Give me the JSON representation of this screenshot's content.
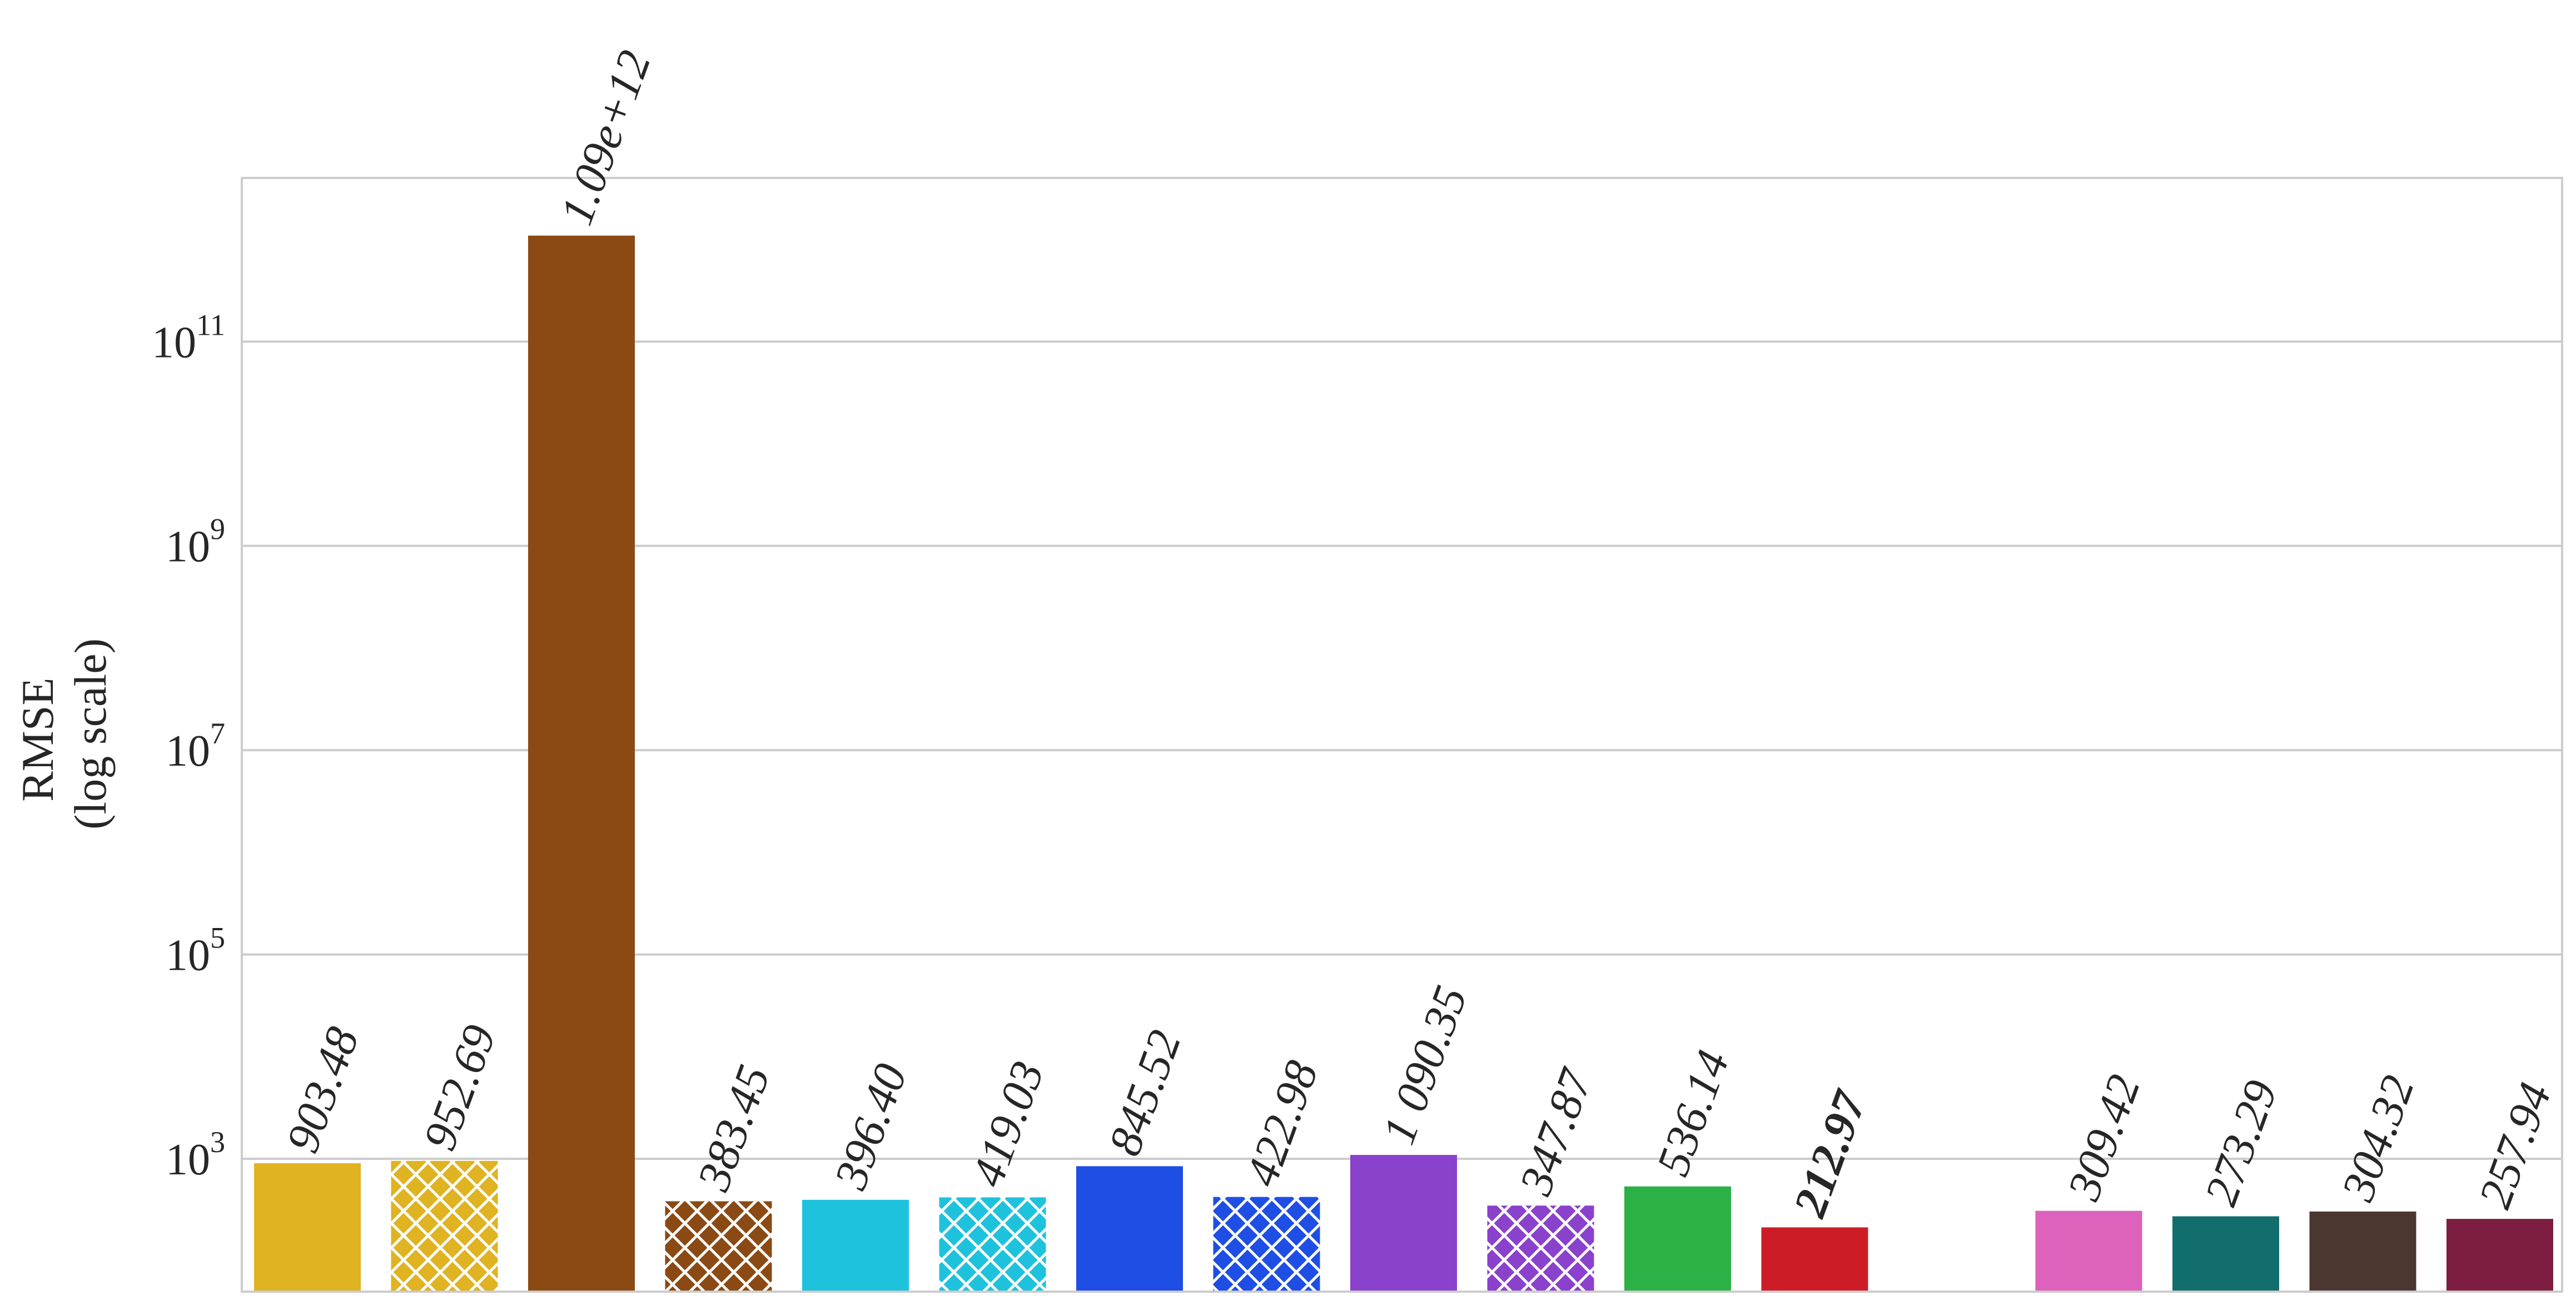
{
  "chart_data": {
    "type": "bar",
    "ylabel_lines": [
      "RMSE",
      "(log scale)"
    ],
    "yscale": "log",
    "ylim": [
      50,
      4000000000000
    ],
    "yticks": [
      {
        "value": 1000,
        "base": "10",
        "exp": "3"
      },
      {
        "value": 100000,
        "base": "10",
        "exp": "5"
      },
      {
        "value": 10000000,
        "base": "10",
        "exp": "7"
      },
      {
        "value": 1000000000,
        "base": "10",
        "exp": "9"
      },
      {
        "value": 100000000000,
        "base": "10",
        "exp": "11"
      }
    ],
    "grid": true,
    "bars": [
      {
        "value": 903.48,
        "label": "903.48",
        "color": "#dfb322",
        "hatch": false,
        "bold": false
      },
      {
        "value": 952.69,
        "label": "952.69",
        "color": "#dfb322",
        "hatch": true,
        "bold": false
      },
      {
        "value": 1090000000000,
        "label": "1.09e+12",
        "color": "#8b4a13",
        "hatch": false,
        "bold": false
      },
      {
        "value": 383.45,
        "label": "383.45",
        "color": "#8b4a13",
        "hatch": true,
        "bold": false
      },
      {
        "value": 396.4,
        "label": "396.40",
        "color": "#1fc2dd",
        "hatch": false,
        "bold": false
      },
      {
        "value": 419.03,
        "label": "419.03",
        "color": "#1fc2dd",
        "hatch": true,
        "bold": false
      },
      {
        "value": 845.52,
        "label": "845.52",
        "color": "#1f4ee4",
        "hatch": false,
        "bold": false
      },
      {
        "value": 422.98,
        "label": "422.98",
        "color": "#1f4ee4",
        "hatch": true,
        "bold": false
      },
      {
        "value": 1090.35,
        "label": "1 090.35",
        "color": "#8a41cc",
        "hatch": false,
        "bold": false
      },
      {
        "value": 347.87,
        "label": "347.87",
        "color": "#8a41cc",
        "hatch": true,
        "bold": false
      },
      {
        "value": 536.14,
        "label": "536.14",
        "color": "#2cb146",
        "hatch": false,
        "bold": false
      },
      {
        "value": 212.97,
        "label": "212.97",
        "color": "#cc1d26",
        "hatch": false,
        "bold": true
      },
      {
        "value": 309.42,
        "label": "309.42",
        "color": "#dc62bc",
        "hatch": false,
        "bold": false
      },
      {
        "value": 273.29,
        "label": "273.29",
        "color": "#126e6c",
        "hatch": false,
        "bold": false
      },
      {
        "value": 304.32,
        "label": "304.32",
        "color": "#4b3730",
        "hatch": false,
        "bold": false
      },
      {
        "value": 257.94,
        "label": "257.94",
        "color": "#7d1d42",
        "hatch": false,
        "bold": false
      }
    ],
    "gap_after_index": 11
  }
}
